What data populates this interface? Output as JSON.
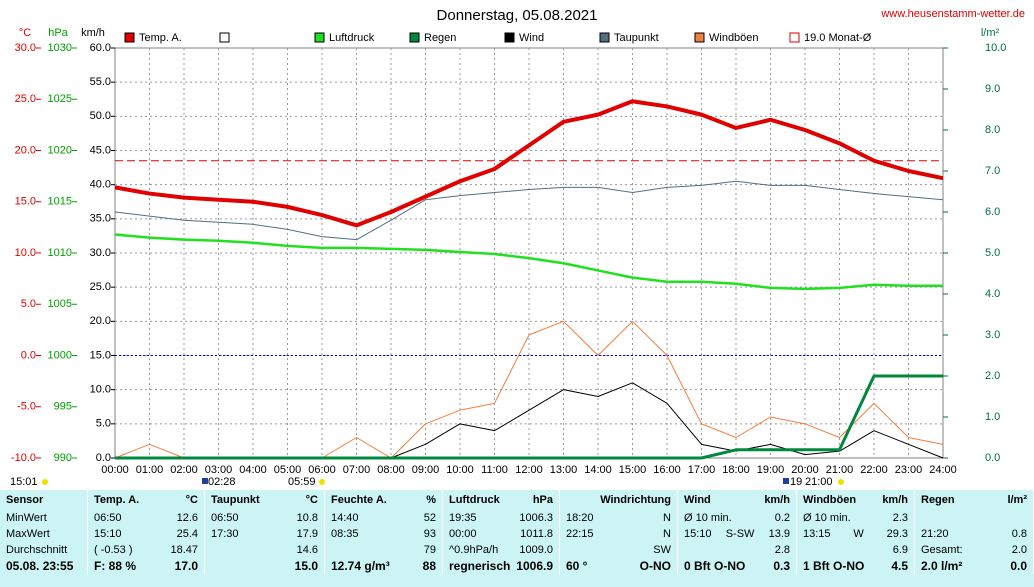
{
  "chart_data": {
    "type": "line",
    "title": "Donnerstag, 05.08.2021",
    "source": "www.heusenstamm-wetter.de",
    "unit_labels": {
      "y": "°C",
      "pressure": "hPa",
      "wind": "km/h",
      "y2": "l/m²"
    },
    "xlim": [
      0,
      24
    ],
    "xticks": [
      {
        "value": 0,
        "label": "00:00"
      },
      {
        "value": 1,
        "label": "01:00"
      },
      {
        "value": 2,
        "label": "02:00"
      },
      {
        "value": 3,
        "label": "03:00"
      },
      {
        "value": 4,
        "label": "04:00"
      },
      {
        "value": 5,
        "label": "05:00"
      },
      {
        "value": 6,
        "label": "06:00"
      },
      {
        "value": 7,
        "label": "07:00"
      },
      {
        "value": 8,
        "label": "08:00"
      },
      {
        "value": 9,
        "label": "09:00"
      },
      {
        "value": 10,
        "label": "10:00"
      },
      {
        "value": 11,
        "label": "11:00"
      },
      {
        "value": 12,
        "label": "12:00"
      },
      {
        "value": 13,
        "label": "13:00"
      },
      {
        "value": 14,
        "label": "14:00"
      },
      {
        "value": 15,
        "label": "15:00"
      },
      {
        "value": 16,
        "label": "16:00"
      },
      {
        "value": 17,
        "label": "17:00"
      },
      {
        "value": 18,
        "label": "18:00"
      },
      {
        "value": 19,
        "label": "19:00"
      },
      {
        "value": 20,
        "label": "20:00"
      },
      {
        "value": 21,
        "label": "21:00"
      },
      {
        "value": 22,
        "label": "22:00"
      },
      {
        "value": 23,
        "label": "23:00"
      },
      {
        "value": 24,
        "label": "24:00"
      }
    ],
    "ylim": [
      -10,
      30
    ],
    "yticks": [
      {
        "value": -10,
        "label": "-10.0"
      },
      {
        "value": -5,
        "label": "-5.0"
      },
      {
        "value": 0,
        "label": "0.0"
      },
      {
        "value": 5,
        "label": "5.0"
      },
      {
        "value": 10,
        "label": "10.0"
      },
      {
        "value": 15,
        "label": "15.0"
      },
      {
        "value": 20,
        "label": "20.0"
      },
      {
        "value": 25,
        "label": "25.0"
      },
      {
        "value": 30,
        "label": "30.0"
      }
    ],
    "pressure_lim": [
      990,
      1030
    ],
    "pressure_ticks": [
      990,
      995,
      1000,
      1005,
      1010,
      1015,
      1020,
      1025,
      1030
    ],
    "wind_lim": [
      0,
      60
    ],
    "wind_ticks": [
      {
        "value": 0,
        "label": "0.0"
      },
      {
        "value": 5,
        "label": "5.0"
      },
      {
        "value": 10,
        "label": "10.0"
      },
      {
        "value": 15,
        "label": "15.0"
      },
      {
        "value": 20,
        "label": "20.0"
      },
      {
        "value": 25,
        "label": "25.0"
      },
      {
        "value": 30,
        "label": "30.0"
      },
      {
        "value": 35,
        "label": "35.0"
      },
      {
        "value": 40,
        "label": "40.0"
      },
      {
        "value": 45,
        "label": "45.0"
      },
      {
        "value": 50,
        "label": "50.0"
      },
      {
        "value": 55,
        "label": "55.0"
      },
      {
        "value": 60,
        "label": "60.0"
      }
    ],
    "y2lim": [
      0,
      10
    ],
    "y2ticks": [
      {
        "value": 0,
        "label": "0.0"
      },
      {
        "value": 1,
        "label": "1.0"
      },
      {
        "value": 2,
        "label": "2.0"
      },
      {
        "value": 3,
        "label": "3.0"
      },
      {
        "value": 4,
        "label": "4.0"
      },
      {
        "value": 5,
        "label": "5.0"
      },
      {
        "value": 6,
        "label": "6.0"
      },
      {
        "value": 7,
        "label": "7.0"
      },
      {
        "value": 8,
        "label": "8.0"
      },
      {
        "value": 9,
        "label": "9.0"
      },
      {
        "value": 10,
        "label": "10.0"
      }
    ],
    "grid": true,
    "x": [
      0,
      1,
      2,
      3,
      4,
      5,
      6,
      7,
      8,
      9,
      10,
      11,
      12,
      13,
      14,
      15,
      16,
      17,
      18,
      19,
      20,
      21,
      22,
      23,
      24
    ],
    "series": [
      {
        "name": "Temp. A.",
        "color": "#e00000",
        "axis": "y",
        "width": 4,
        "values": [
          16.4,
          15.8,
          15.4,
          15.2,
          15.0,
          14.5,
          13.7,
          12.7,
          14.0,
          15.5,
          17.0,
          18.2,
          20.5,
          22.8,
          23.5,
          24.8,
          24.3,
          23.5,
          22.2,
          23.0,
          22.0,
          20.7,
          19.0,
          18.0,
          17.3
        ]
      },
      {
        "name": "Luftdruck",
        "color": "#20e020",
        "axis": "pressure",
        "width": 2.5,
        "values": [
          1011.8,
          1011.5,
          1011.3,
          1011.2,
          1011.0,
          1010.7,
          1010.5,
          1010.5,
          1010.4,
          1010.3,
          1010.1,
          1009.9,
          1009.5,
          1009.0,
          1008.3,
          1007.6,
          1007.2,
          1007.2,
          1007.0,
          1006.6,
          1006.5,
          1006.6,
          1006.9,
          1006.8,
          1006.8
        ]
      },
      {
        "name": "Regen",
        "color": "#00883c",
        "axis": "y2",
        "width": 3,
        "values": [
          0,
          0,
          0,
          0,
          0,
          0,
          0,
          0,
          0,
          0,
          0,
          0,
          0,
          0,
          0,
          0,
          0,
          0,
          0.2,
          0.2,
          0.2,
          0.2,
          2.0,
          2.0,
          2.0
        ]
      },
      {
        "name": "Wind",
        "color": "#000000",
        "axis": "wind",
        "width": 1,
        "values": [
          0,
          0,
          0,
          0,
          0,
          0,
          0,
          0,
          0,
          2,
          5,
          4,
          7,
          10,
          9,
          11,
          8,
          2,
          1,
          2,
          0.5,
          1,
          4,
          2,
          0
        ]
      },
      {
        "name": "Taupunkt",
        "color": "#507080",
        "axis": "y",
        "width": 1,
        "values": [
          14.0,
          13.6,
          13.2,
          13.0,
          12.8,
          12.3,
          11.6,
          11.3,
          13.2,
          15.2,
          15.6,
          15.9,
          16.2,
          16.4,
          16.4,
          15.9,
          16.4,
          16.6,
          17.0,
          16.6,
          16.6,
          16.2,
          15.8,
          15.5,
          15.2
        ]
      },
      {
        "name": "Windböen",
        "color": "#f08040",
        "axis": "wind",
        "width": 1,
        "values": [
          0,
          2,
          0,
          0,
          0,
          0,
          0,
          3,
          0,
          5,
          7,
          8,
          18,
          20,
          15,
          20,
          15,
          5,
          3,
          6,
          5,
          3,
          8,
          3,
          2
        ]
      }
    ],
    "reference_lines": [
      {
        "name": "19.0 Monat-Ø",
        "value": 19.0,
        "color": "#e00000"
      }
    ],
    "time_markers": [
      "15:01",
      "02:28",
      "05:59",
      "19",
      "21:00"
    ]
  },
  "table": {
    "header": [
      [
        "Sensor"
      ],
      [
        "Temp. A.",
        "°C"
      ],
      [
        "Taupunkt",
        "°C"
      ],
      [
        "Feuchte A.",
        "%"
      ],
      [
        "Luftdruck",
        "hPa"
      ],
      [
        "Windrichtung"
      ],
      [
        "Wind",
        "km/h"
      ],
      [
        "Windböen",
        "km/h"
      ],
      [
        "Regen",
        "l/m²"
      ]
    ],
    "rows": [
      [
        [
          "MinWert"
        ],
        [
          "06:50",
          "12.6"
        ],
        [
          "06:50",
          "10.8"
        ],
        [
          "14:40",
          "52"
        ],
        [
          "19:35",
          "1006.3"
        ],
        [
          "18:20",
          "N"
        ],
        [
          "Ø 10 min.",
          "0.2"
        ],
        [
          "Ø 10 min.",
          "2.3"
        ],
        []
      ],
      [
        [
          "MaxWert"
        ],
        [
          "15:10",
          "25.4"
        ],
        [
          "17:30",
          "17.9"
        ],
        [
          "08:35",
          "93"
        ],
        [
          "00:00",
          "1011.8"
        ],
        [
          "22:15",
          "N"
        ],
        [
          "15:10",
          "S-SW",
          "13.9"
        ],
        [
          "13:15",
          "W",
          "29.3"
        ],
        [
          "21:20",
          "0.8"
        ]
      ],
      [
        [
          "Durchschnitt"
        ],
        [
          "( -0.53 )",
          "18.47"
        ],
        [
          "14.6"
        ],
        [
          "79"
        ],
        [
          "^0.9hPa/h",
          "1009.0"
        ],
        [
          "SW"
        ],
        [
          "2.8"
        ],
        [
          "6.9"
        ],
        [
          "Gesamt:",
          "2.0"
        ]
      ],
      [
        [
          "05.08. 23:55"
        ],
        [
          "F: 88 %",
          "17.0"
        ],
        [
          "15.0"
        ],
        [
          "12.74 g/m³",
          "88"
        ],
        [
          "regnerisch",
          "1006.9"
        ],
        [
          "60 °",
          "O-NO"
        ],
        [
          "0 Bft O-NO",
          "0.3"
        ],
        [
          "1 Bft O-NO",
          "4.5"
        ],
        [
          "2.0 l/m²",
          "0.0"
        ]
      ]
    ]
  }
}
